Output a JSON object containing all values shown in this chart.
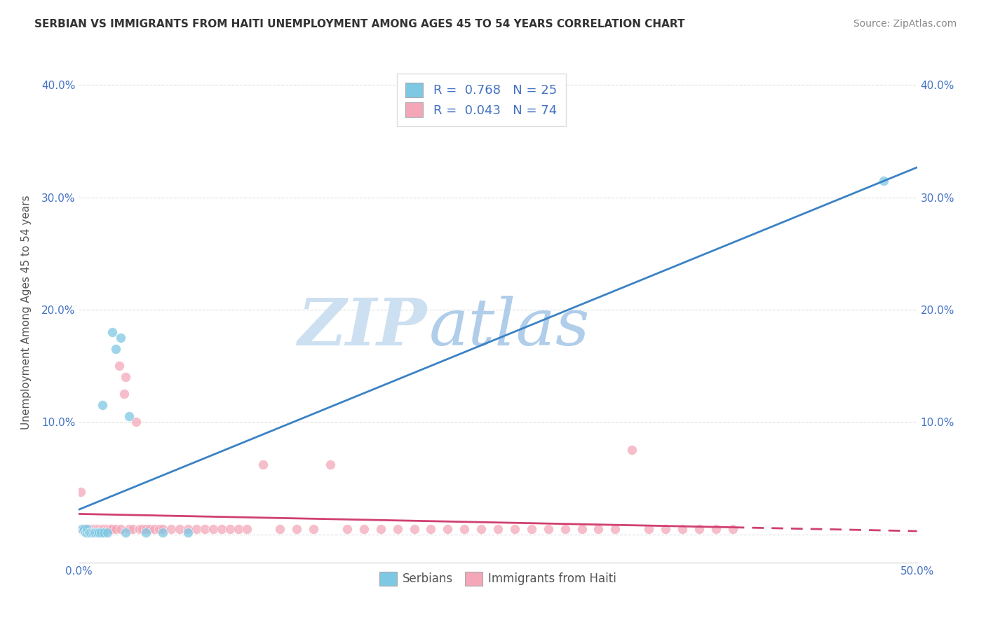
{
  "title": "SERBIAN VS IMMIGRANTS FROM HAITI UNEMPLOYMENT AMONG AGES 45 TO 54 YEARS CORRELATION CHART",
  "source": "Source: ZipAtlas.com",
  "ylabel": "Unemployment Among Ages 45 to 54 years",
  "xlim": [
    0.0,
    0.5
  ],
  "ylim": [
    -0.025,
    0.42
  ],
  "xticks": [
    0.0,
    0.5
  ],
  "xticklabels": [
    "0.0%",
    "50.0%"
  ],
  "yticks": [
    0.0,
    0.1,
    0.2,
    0.3,
    0.4
  ],
  "yticklabels": [
    "",
    "10.0%",
    "20.0%",
    "30.0%",
    "40.0%"
  ],
  "serbian_R": 0.768,
  "serbian_N": 25,
  "haiti_R": 0.043,
  "haiti_N": 74,
  "serbian_color": "#7ec8e3",
  "haiti_color": "#f4a7b9",
  "serbian_line_color": "#3b82c4",
  "haiti_line_color": "#d04070",
  "watermark_zip_color": "#c8ddf0",
  "watermark_atlas_color": "#a8c8e8",
  "background_color": "#ffffff",
  "grid_color": "#e0e0e0",
  "title_color": "#333333",
  "axis_label_color": "#555555",
  "tick_color": "#4472C4",
  "legend_text_color": "#4472C4",
  "serbian_points_x": [
    0.002,
    0.003,
    0.004,
    0.005,
    0.005,
    0.006,
    0.007,
    0.008,
    0.009,
    0.01,
    0.011,
    0.012,
    0.013,
    0.014,
    0.015,
    0.017,
    0.02,
    0.022,
    0.025,
    0.028,
    0.03,
    0.04,
    0.05,
    0.065,
    0.48
  ],
  "serbian_points_y": [
    0.005,
    0.005,
    0.002,
    0.002,
    0.005,
    0.002,
    0.002,
    0.002,
    0.002,
    0.002,
    0.002,
    0.002,
    0.002,
    0.115,
    0.002,
    0.002,
    0.18,
    0.165,
    0.175,
    0.002,
    0.105,
    0.002,
    0.002,
    0.002,
    0.315
  ],
  "haiti_points_x": [
    0.001,
    0.002,
    0.003,
    0.004,
    0.005,
    0.006,
    0.007,
    0.008,
    0.009,
    0.01,
    0.011,
    0.012,
    0.013,
    0.014,
    0.015,
    0.016,
    0.017,
    0.018,
    0.019,
    0.02,
    0.022,
    0.024,
    0.025,
    0.027,
    0.028,
    0.03,
    0.032,
    0.034,
    0.036,
    0.038,
    0.04,
    0.042,
    0.045,
    0.048,
    0.05,
    0.055,
    0.06,
    0.065,
    0.07,
    0.075,
    0.08,
    0.085,
    0.09,
    0.095,
    0.1,
    0.11,
    0.12,
    0.13,
    0.14,
    0.15,
    0.16,
    0.17,
    0.18,
    0.19,
    0.2,
    0.21,
    0.22,
    0.23,
    0.24,
    0.25,
    0.26,
    0.27,
    0.28,
    0.29,
    0.3,
    0.31,
    0.32,
    0.33,
    0.34,
    0.35,
    0.36,
    0.37,
    0.38,
    0.39
  ],
  "haiti_points_y": [
    0.038,
    0.005,
    0.005,
    0.005,
    0.005,
    0.005,
    0.005,
    0.005,
    0.005,
    0.005,
    0.005,
    0.005,
    0.005,
    0.005,
    0.005,
    0.005,
    0.005,
    0.005,
    0.005,
    0.005,
    0.005,
    0.15,
    0.005,
    0.125,
    0.14,
    0.005,
    0.005,
    0.1,
    0.005,
    0.005,
    0.005,
    0.005,
    0.005,
    0.005,
    0.005,
    0.005,
    0.005,
    0.005,
    0.005,
    0.005,
    0.005,
    0.005,
    0.005,
    0.005,
    0.005,
    0.062,
    0.005,
    0.005,
    0.005,
    0.062,
    0.005,
    0.005,
    0.005,
    0.005,
    0.005,
    0.005,
    0.005,
    0.005,
    0.005,
    0.005,
    0.005,
    0.005,
    0.005,
    0.005,
    0.005,
    0.005,
    0.005,
    0.075,
    0.005,
    0.005,
    0.005,
    0.005,
    0.005,
    0.005
  ]
}
